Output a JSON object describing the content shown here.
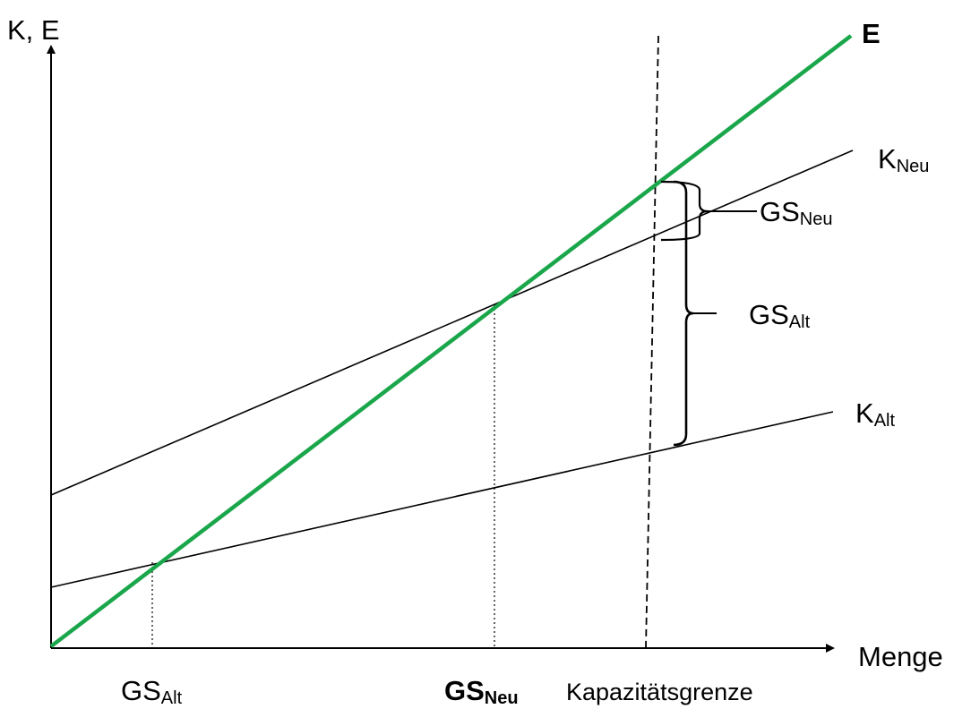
{
  "axes": {
    "y_label": "K, E",
    "x_label": "Menge"
  },
  "lines": {
    "e": {
      "label": "E",
      "color": "#1aa64a"
    },
    "k_neu": {
      "main": "K",
      "sub": "Neu"
    },
    "k_alt": {
      "main": "K",
      "sub": "Alt"
    }
  },
  "braces": {
    "gs_neu": {
      "main": "GS",
      "sub": "Neu"
    },
    "gs_alt": {
      "main": "GS",
      "sub": "Alt"
    }
  },
  "x_ticks": {
    "gs_alt": {
      "main": "GS",
      "sub": "Alt"
    },
    "gs_neu": {
      "main": "GS",
      "sub": "Neu"
    },
    "capacity": "Kapazitätsgrenze"
  }
}
